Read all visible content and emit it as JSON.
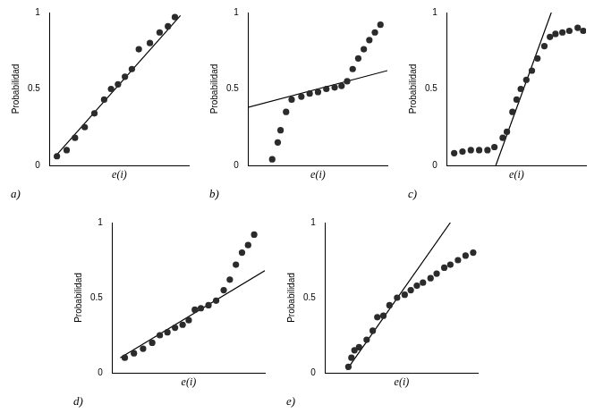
{
  "chart_data": [
    {
      "type": "scatter",
      "title": "a)",
      "xlabel": "e(i)",
      "ylabel": "Probabilidad",
      "xlim": [
        0,
        10
      ],
      "ylim": [
        0,
        1
      ],
      "yticks": [
        0,
        0.5,
        1
      ],
      "tick_labels": "y",
      "grid": false,
      "series": [
        {
          "type": "scatter",
          "color": "#2b2b2b",
          "x": [
            0.5,
            1.2,
            1.8,
            2.5,
            3.2,
            3.9,
            4.4,
            4.9,
            5.4,
            5.9,
            6.4,
            7.2,
            7.9,
            8.5,
            9.0
          ],
          "values": [
            0.06,
            0.1,
            0.18,
            0.25,
            0.34,
            0.43,
            0.5,
            0.53,
            0.58,
            0.63,
            0.76,
            0.8,
            0.87,
            0.91,
            0.97
          ]
        },
        {
          "type": "line",
          "color": "#000000",
          "x": [
            0.3,
            9.4
          ],
          "values": [
            0.05,
            0.98
          ]
        }
      ]
    },
    {
      "type": "scatter",
      "title": "b)",
      "xlabel": "e(i)",
      "ylabel": "Probabilidad",
      "xlim": [
        0,
        10
      ],
      "ylim": [
        0,
        1
      ],
      "yticks": [
        0,
        0.5,
        1
      ],
      "tick_labels": "y",
      "grid": false,
      "series": [
        {
          "type": "scatter",
          "color": "#2b2b2b",
          "x": [
            1.7,
            2.1,
            2.3,
            2.7,
            3.1,
            3.8,
            4.4,
            5.0,
            5.6,
            6.2,
            6.7,
            7.1,
            7.5,
            7.9,
            8.3,
            8.7,
            9.1,
            9.5
          ],
          "values": [
            0.04,
            0.15,
            0.23,
            0.35,
            0.43,
            0.45,
            0.47,
            0.48,
            0.5,
            0.51,
            0.52,
            0.55,
            0.63,
            0.7,
            0.76,
            0.82,
            0.87,
            0.92
          ]
        },
        {
          "type": "line",
          "color": "#000000",
          "x": [
            0,
            10
          ],
          "values": [
            0.38,
            0.62
          ]
        }
      ]
    },
    {
      "type": "scatter",
      "title": "c)",
      "xlabel": "e(i)",
      "ylabel": "Probabilidad",
      "xlim": [
        0,
        10
      ],
      "ylim": [
        0,
        1
      ],
      "yticks": [
        0,
        0.5,
        1
      ],
      "tick_labels": "y",
      "grid": false,
      "series": [
        {
          "type": "scatter",
          "color": "#2b2b2b",
          "x": [
            0.5,
            1.1,
            1.7,
            2.3,
            2.9,
            3.4,
            4.0,
            4.3,
            4.7,
            5.0,
            5.3,
            5.7,
            6.1,
            6.5,
            7.0,
            7.4,
            7.8,
            8.3,
            8.8,
            9.4,
            9.8
          ],
          "values": [
            0.08,
            0.09,
            0.1,
            0.1,
            0.1,
            0.12,
            0.18,
            0.22,
            0.35,
            0.43,
            0.5,
            0.56,
            0.62,
            0.7,
            0.78,
            0.84,
            0.86,
            0.87,
            0.88,
            0.9,
            0.88
          ]
        },
        {
          "type": "line",
          "color": "#000000",
          "x": [
            3.5,
            7.5
          ],
          "values": [
            0,
            1
          ]
        }
      ]
    },
    {
      "type": "scatter",
      "title": "d)",
      "xlabel": "e(i)",
      "ylabel": "Probabilidad",
      "xlim": [
        0,
        10
      ],
      "ylim": [
        0,
        1
      ],
      "yticks": [
        0,
        0.5,
        1
      ],
      "tick_labels": "y",
      "grid": false,
      "series": [
        {
          "type": "scatter",
          "color": "#2b2b2b",
          "x": [
            0.8,
            1.4,
            2.0,
            2.6,
            3.1,
            3.6,
            4.1,
            4.6,
            5.0,
            5.4,
            5.8,
            6.3,
            6.8,
            7.3,
            7.7,
            8.1,
            8.5,
            8.9,
            9.3
          ],
          "values": [
            0.1,
            0.13,
            0.16,
            0.2,
            0.25,
            0.27,
            0.3,
            0.32,
            0.35,
            0.42,
            0.43,
            0.45,
            0.48,
            0.55,
            0.62,
            0.72,
            0.8,
            0.85,
            0.92
          ]
        },
        {
          "type": "line",
          "color": "#000000",
          "x": [
            0.5,
            10
          ],
          "values": [
            0.1,
            0.68
          ]
        }
      ]
    },
    {
      "type": "scatter",
      "title": "e)",
      "xlabel": "e(i)",
      "ylabel": "Probabilidad",
      "xlim": [
        0,
        10
      ],
      "ylim": [
        0,
        1
      ],
      "yticks": [
        0,
        0.5,
        1
      ],
      "tick_labels": "y",
      "grid": false,
      "series": [
        {
          "type": "scatter",
          "color": "#2b2b2b",
          "x": [
            1.5,
            1.7,
            1.9,
            2.2,
            2.7,
            3.1,
            3.4,
            3.8,
            4.2,
            4.7,
            5.2,
            5.6,
            6.0,
            6.4,
            6.9,
            7.3,
            7.8,
            8.2,
            8.7,
            9.2,
            9.7
          ],
          "values": [
            0.04,
            0.1,
            0.15,
            0.17,
            0.22,
            0.28,
            0.37,
            0.38,
            0.45,
            0.5,
            0.52,
            0.55,
            0.58,
            0.6,
            0.63,
            0.66,
            0.7,
            0.72,
            0.75,
            0.78,
            0.8
          ]
        },
        {
          "type": "line",
          "color": "#000000",
          "x": [
            1.4,
            8.2
          ],
          "values": [
            0.02,
            1
          ]
        }
      ]
    }
  ]
}
